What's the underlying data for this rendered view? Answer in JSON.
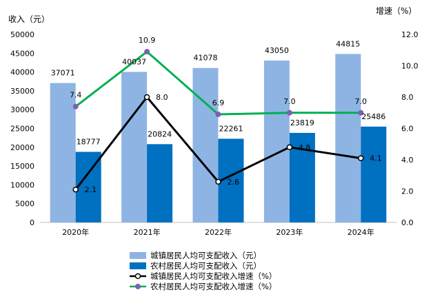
{
  "chart_data": {
    "type": "bar",
    "categories": [
      "2020年",
      "2021年",
      "2022年",
      "2023年",
      "2024年"
    ],
    "y_left": {
      "label": "收入（元）",
      "range": [
        0,
        50000
      ],
      "ticks": [
        "0",
        "5000",
        "10000",
        "15000",
        "20000",
        "25000",
        "30000",
        "35000",
        "40000",
        "45000",
        "50000"
      ]
    },
    "y_right": {
      "label": "增速（%）",
      "range": [
        0,
        12
      ],
      "ticks": [
        "0.0",
        "2.0",
        "4.0",
        "6.0",
        "8.0",
        "10.0",
        "12.0"
      ]
    },
    "series": [
      {
        "name": "城镇居民人均可支配收入（元）",
        "kind": "bar",
        "axis": "left",
        "color": "#8eb4e3",
        "values": [
          37071,
          40037,
          41078,
          43050,
          44815
        ]
      },
      {
        "name": "农村居民人均可支配收入（元）",
        "kind": "bar",
        "axis": "left",
        "color": "#0070c0",
        "values": [
          18777,
          20824,
          22261,
          23819,
          25486
        ]
      },
      {
        "name": "城镇居民人均可支配收入增速（%）",
        "kind": "line",
        "axis": "right",
        "color": "#000000",
        "values": [
          2.1,
          8.0,
          2.6,
          4.8,
          4.1
        ]
      },
      {
        "name": "农村居民人均可支配收入增速（%）",
        "kind": "line",
        "axis": "right",
        "color": "#00b050",
        "marker_color": "#7f5fb3",
        "values": [
          7.4,
          10.9,
          6.9,
          7.0,
          7.0
        ]
      }
    ],
    "value_labels": {
      "s0": [
        "37071",
        "40037",
        "41078",
        "43050",
        "44815"
      ],
      "s1": [
        "18777",
        "20824",
        "22261",
        "23819",
        "25486"
      ],
      "s2": [
        "2.1",
        "8.0",
        "2.6",
        "4.8",
        "4.1"
      ],
      "s3": [
        "7.4",
        "10.9",
        "6.9",
        "7.0",
        "7.0"
      ]
    },
    "legend_position": "bottom",
    "grid": false
  }
}
